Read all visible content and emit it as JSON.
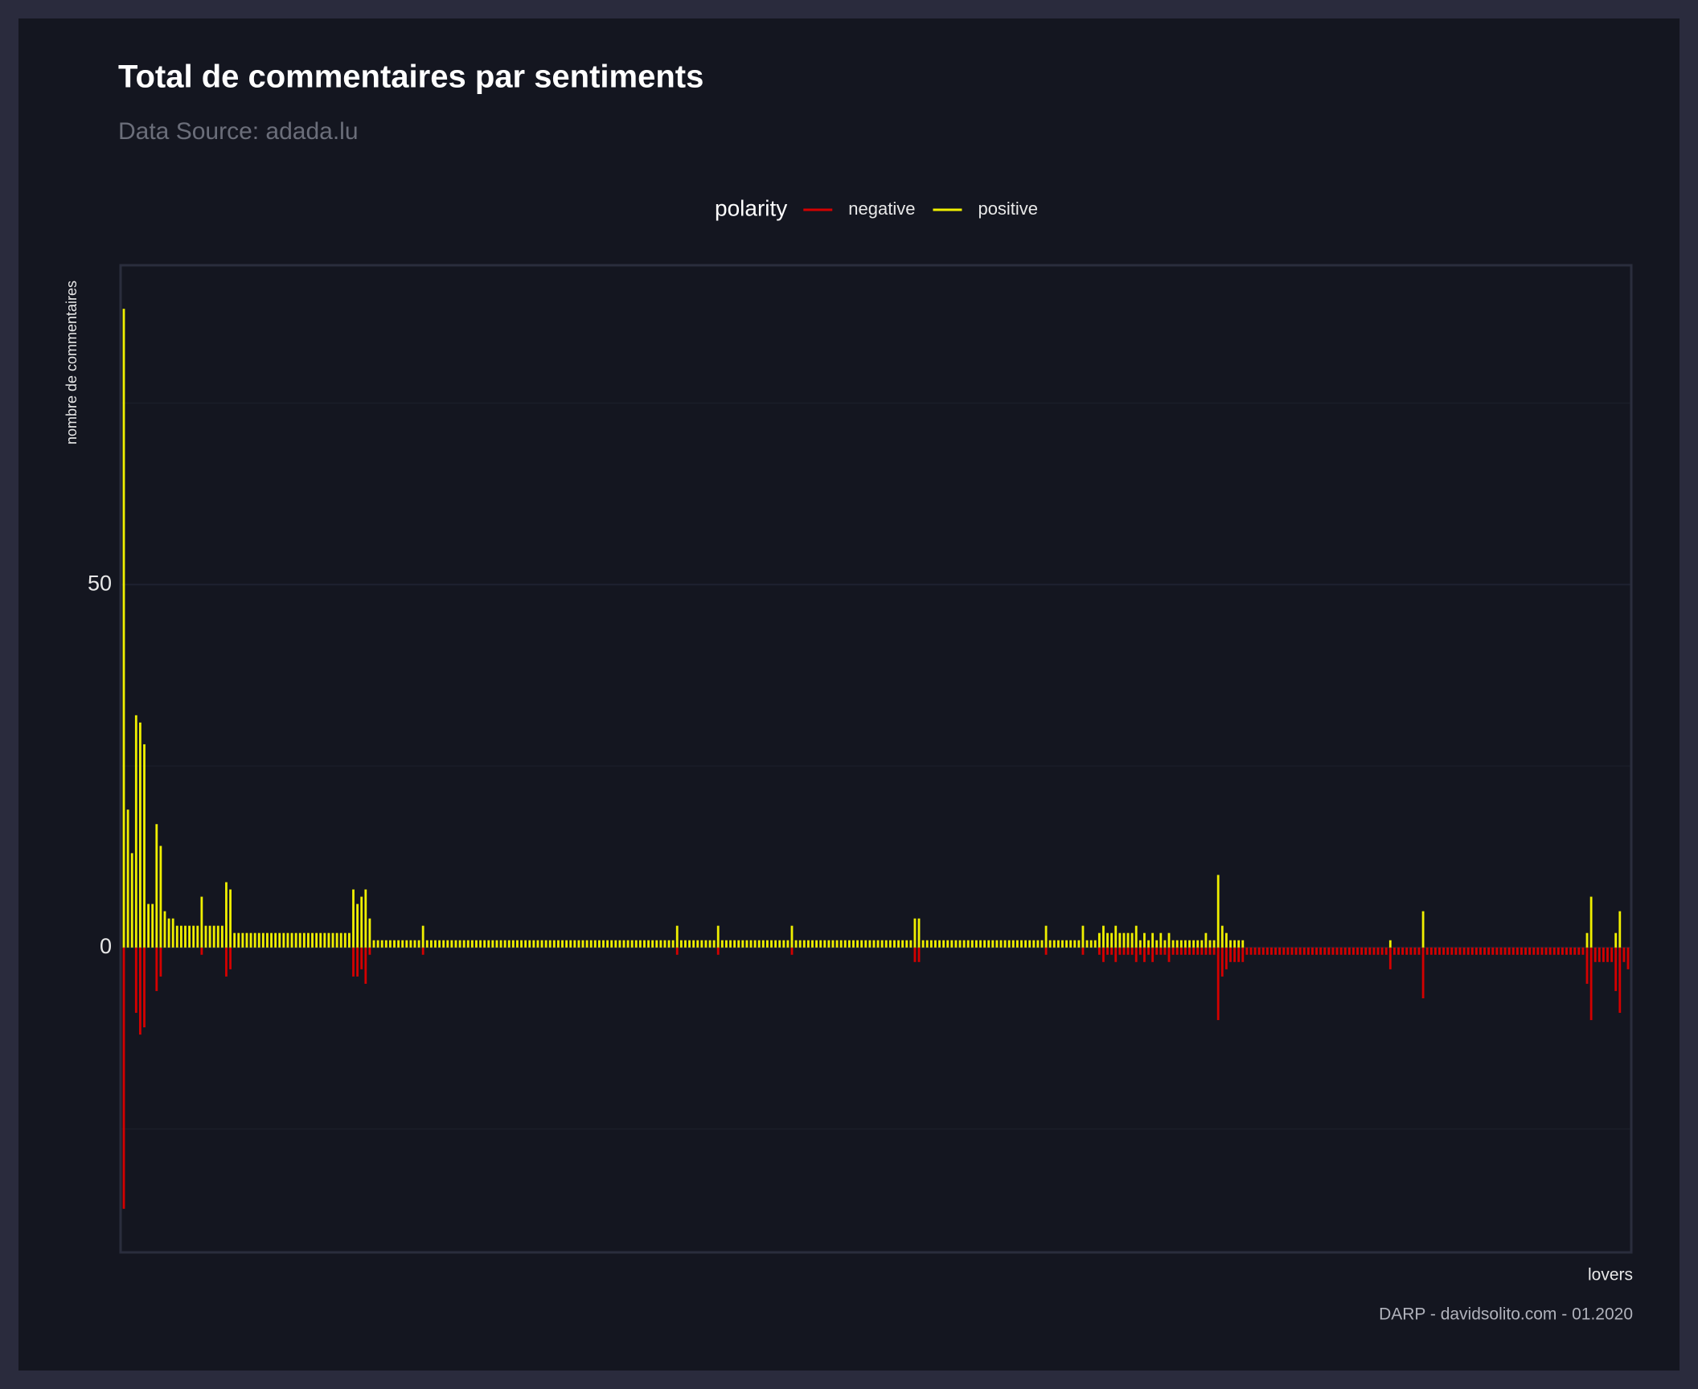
{
  "chart_data": {
    "type": "bar",
    "title": "Total de commentaires par sentiments",
    "subtitle": "Data Source: adada.lu",
    "legend_title": "polarity",
    "y_label": "nombre de commentaires",
    "x_label": "lovers",
    "caption": "DARP - davidsolito.com - 01.2020",
    "ylim": [
      -42,
      94
    ],
    "yticks": [
      0,
      50
    ],
    "minor_yticks": [
      -25,
      25,
      75
    ],
    "grid": true,
    "legend": "top",
    "series": [
      {
        "name": "negative",
        "color": "#d40000",
        "values": [
          -36,
          0,
          0,
          -9,
          -12,
          -11,
          0,
          0,
          -6,
          -4,
          0,
          0,
          0,
          0,
          0,
          0,
          0,
          0,
          0,
          -1,
          0,
          0,
          0,
          0,
          0,
          -4,
          -3,
          0,
          0,
          0,
          0,
          0,
          0,
          0,
          0,
          0,
          0,
          0,
          0,
          0,
          0,
          0,
          0,
          0,
          0,
          0,
          0,
          0,
          0,
          0,
          0,
          0,
          0,
          0,
          0,
          0,
          -4,
          -4,
          -3,
          -5,
          -1,
          0,
          0,
          0,
          0,
          0,
          0,
          0,
          0,
          0,
          0,
          0,
          0,
          -1,
          0,
          0,
          0,
          0,
          0,
          0,
          0,
          0,
          0,
          0,
          0,
          0,
          0,
          0,
          0,
          0,
          0,
          0,
          0,
          0,
          0,
          0,
          0,
          0,
          0,
          0,
          0,
          0,
          0,
          0,
          0,
          0,
          0,
          0,
          0,
          0,
          0,
          0,
          0,
          0,
          0,
          0,
          0,
          0,
          0,
          0,
          0,
          0,
          0,
          0,
          0,
          0,
          0,
          0,
          0,
          0,
          0,
          0,
          0,
          0,
          0,
          -1,
          0,
          0,
          0,
          0,
          0,
          0,
          0,
          0,
          0,
          -1,
          0,
          0,
          0,
          0,
          0,
          0,
          0,
          0,
          0,
          0,
          0,
          0,
          0,
          0,
          0,
          0,
          0,
          -1,
          0,
          0,
          0,
          0,
          0,
          0,
          0,
          0,
          0,
          0,
          0,
          0,
          0,
          0,
          0,
          0,
          0,
          0,
          0,
          0,
          0,
          0,
          0,
          0,
          0,
          0,
          0,
          0,
          0,
          -2,
          -2,
          0,
          0,
          0,
          0,
          0,
          0,
          0,
          0,
          0,
          0,
          0,
          0,
          0,
          0,
          0,
          0,
          0,
          0,
          0,
          0,
          0,
          0,
          0,
          0,
          0,
          0,
          0,
          0,
          0,
          0,
          -1,
          0,
          0,
          0,
          0,
          0,
          0,
          0,
          0,
          -1,
          0,
          0,
          0,
          -1,
          -2,
          -1,
          -1,
          -2,
          -1,
          -1,
          -1,
          -1,
          -2,
          -1,
          -2,
          -1,
          -2,
          -1,
          -1,
          -1,
          -2,
          -1,
          -1,
          -1,
          -1,
          -1,
          -1,
          -1,
          -1,
          -1,
          -1,
          -1,
          -10,
          -4,
          -3,
          -2,
          -2,
          -2,
          -2,
          -1,
          -1,
          -1,
          -1,
          -1,
          -1,
          -1,
          -1,
          -1,
          -1,
          -1,
          -1,
          -1,
          -1,
          -1,
          -1,
          -1,
          -1,
          -1,
          -1,
          -1,
          -1,
          -1,
          -1,
          -1,
          -1,
          -1,
          -1,
          -1,
          -1,
          -1,
          -1,
          -1,
          -1,
          -1,
          -3,
          -1,
          -1,
          -1,
          -1,
          -1,
          -1,
          -1,
          -7,
          -1,
          -1,
          -1,
          -1,
          -1,
          -1,
          -1,
          -1,
          -1,
          -1,
          -1,
          -1,
          -1,
          -1,
          -1,
          -1,
          -1,
          -1,
          -1,
          -1,
          -1,
          -1,
          -1,
          -1,
          -1,
          -1,
          -1,
          -1,
          -1,
          -1,
          -1,
          -1,
          -1,
          -1,
          -1,
          -1,
          -1,
          -1,
          -1,
          -5,
          -10,
          -2,
          -2,
          -2,
          -2,
          -2,
          -6,
          -9,
          -2,
          -3
        ]
      },
      {
        "name": "positive",
        "color": "#f0f000",
        "values": [
          88,
          19,
          13,
          32,
          31,
          28,
          6,
          6,
          17,
          14,
          5,
          4,
          4,
          3,
          3,
          3,
          3,
          3,
          3,
          7,
          3,
          3,
          3,
          3,
          3,
          9,
          8,
          2,
          2,
          2,
          2,
          2,
          2,
          2,
          2,
          2,
          2,
          2,
          2,
          2,
          2,
          2,
          2,
          2,
          2,
          2,
          2,
          2,
          2,
          2,
          2,
          2,
          2,
          2,
          2,
          2,
          8,
          6,
          7,
          8,
          4,
          1,
          1,
          1,
          1,
          1,
          1,
          1,
          1,
          1,
          1,
          1,
          1,
          3,
          1,
          1,
          1,
          1,
          1,
          1,
          1,
          1,
          1,
          1,
          1,
          1,
          1,
          1,
          1,
          1,
          1,
          1,
          1,
          1,
          1,
          1,
          1,
          1,
          1,
          1,
          1,
          1,
          1,
          1,
          1,
          1,
          1,
          1,
          1,
          1,
          1,
          1,
          1,
          1,
          1,
          1,
          1,
          1,
          1,
          1,
          1,
          1,
          1,
          1,
          1,
          1,
          1,
          1,
          1,
          1,
          1,
          1,
          1,
          1,
          1,
          3,
          1,
          1,
          1,
          1,
          1,
          1,
          1,
          1,
          1,
          3,
          1,
          1,
          1,
          1,
          1,
          1,
          1,
          1,
          1,
          1,
          1,
          1,
          1,
          1,
          1,
          1,
          1,
          3,
          1,
          1,
          1,
          1,
          1,
          1,
          1,
          1,
          1,
          1,
          1,
          1,
          1,
          1,
          1,
          1,
          1,
          1,
          1,
          1,
          1,
          1,
          1,
          1,
          1,
          1,
          1,
          1,
          1,
          4,
          4,
          1,
          1,
          1,
          1,
          1,
          1,
          1,
          1,
          1,
          1,
          1,
          1,
          1,
          1,
          1,
          1,
          1,
          1,
          1,
          1,
          1,
          1,
          1,
          1,
          1,
          1,
          1,
          1,
          1,
          1,
          3,
          1,
          1,
          1,
          1,
          1,
          1,
          1,
          1,
          3,
          1,
          1,
          1,
          2,
          3,
          2,
          2,
          3,
          2,
          2,
          2,
          2,
          3,
          1,
          2,
          1,
          2,
          1,
          2,
          1,
          2,
          1,
          1,
          1,
          1,
          1,
          1,
          1,
          1,
          2,
          1,
          1,
          10,
          3,
          2,
          1,
          1,
          1,
          1,
          0,
          0,
          0,
          0,
          0,
          0,
          0,
          0,
          0,
          0,
          0,
          0,
          0,
          0,
          0,
          0,
          0,
          0,
          0,
          0,
          0,
          0,
          0,
          0,
          0,
          0,
          0,
          0,
          0,
          0,
          0,
          0,
          0,
          0,
          0,
          1,
          0,
          0,
          0,
          0,
          0,
          0,
          0,
          5,
          0,
          0,
          0,
          0,
          0,
          0,
          0,
          0,
          0,
          0,
          0,
          0,
          0,
          0,
          0,
          0,
          0,
          0,
          0,
          0,
          0,
          0,
          0,
          0,
          0,
          0,
          0,
          0,
          0,
          0,
          0,
          0,
          0,
          0,
          0,
          0,
          0,
          0,
          0,
          2,
          7,
          0,
          0,
          0,
          0,
          0,
          2,
          5,
          0,
          0
        ]
      }
    ]
  }
}
